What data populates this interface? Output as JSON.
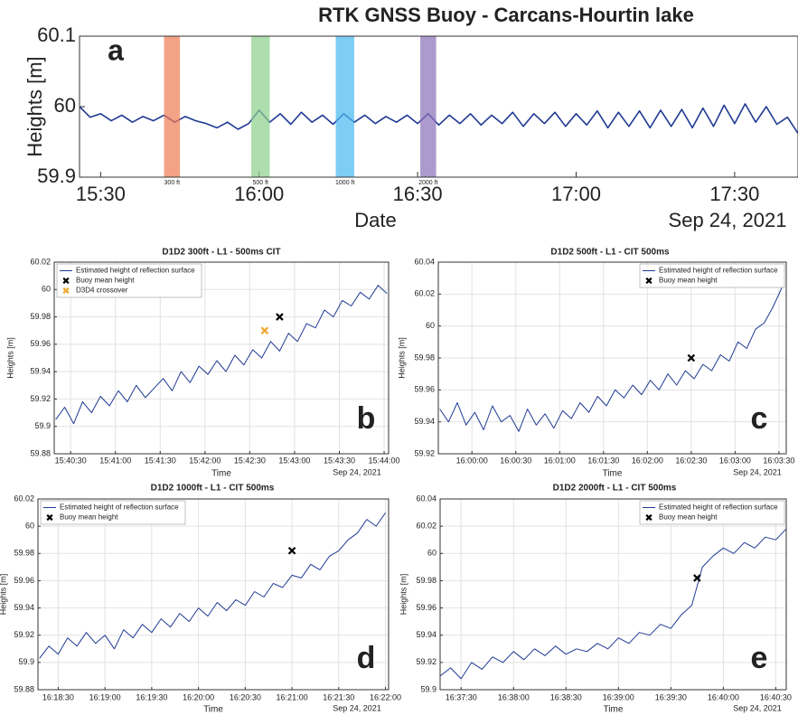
{
  "chart_data": [
    {
      "type": "line",
      "title": "RTK GNSS Buoy - Carcans-Hourtin lake",
      "x_label": "Date",
      "y_label": "Heights [m]",
      "x_date": "Sep 24, 2021",
      "panel_label": "a",
      "grid": false,
      "xlim": [
        "15:26",
        "17:42"
      ],
      "xticks": [
        "15:30",
        "16:00",
        "16:30",
        "17:00",
        "17:30"
      ],
      "ylim": [
        59.9,
        60.1
      ],
      "yticks": [
        59.9,
        60,
        60.1
      ],
      "bands": [
        {
          "label": "300 ft",
          "start": "15:42",
          "end": "15:45",
          "color": "#f07b52"
        },
        {
          "label": "500 ft",
          "start": "15:58.5",
          "end": "16:02",
          "color": "#8ccf8c"
        },
        {
          "label": "1000 ft",
          "start": "16:14.5",
          "end": "16:18",
          "color": "#47b8f0"
        },
        {
          "label": "2000 ft",
          "start": "16:30.5",
          "end": "16:33.5",
          "color": "#8a6fb8"
        }
      ],
      "x": [
        "15:26",
        "15:28",
        "15:30",
        "15:32",
        "15:34",
        "15:36",
        "15:38",
        "15:40",
        "15:42",
        "15:44",
        "15:46",
        "15:48",
        "15:50",
        "15:52",
        "15:54",
        "15:56",
        "15:58",
        "16:00",
        "16:02",
        "16:04",
        "16:06",
        "16:08",
        "16:10",
        "16:12",
        "16:14",
        "16:16",
        "16:18",
        "16:20",
        "16:22",
        "16:24",
        "16:26",
        "16:28",
        "16:30",
        "16:32",
        "16:34",
        "16:36",
        "16:38",
        "16:40",
        "16:42",
        "16:44",
        "16:46",
        "16:48",
        "16:50",
        "16:52",
        "16:54",
        "16:56",
        "16:58",
        "17:00",
        "17:02",
        "17:04",
        "17:06",
        "17:08",
        "17:10",
        "17:12",
        "17:14",
        "17:16",
        "17:18",
        "17:20",
        "17:22",
        "17:24",
        "17:26",
        "17:28",
        "17:30",
        "17:32",
        "17:34",
        "17:36",
        "17:38",
        "17:40",
        "17:42"
      ],
      "series": [
        {
          "name": null,
          "color": "#1f3a93",
          "values": [
            60.0,
            59.985,
            59.99,
            59.98,
            59.988,
            59.978,
            59.986,
            59.98,
            59.988,
            59.978,
            59.986,
            59.98,
            59.976,
            59.97,
            59.978,
            59.968,
            59.976,
            59.995,
            59.978,
            59.99,
            59.975,
            59.992,
            59.978,
            59.988,
            59.975,
            59.99,
            59.978,
            59.988,
            59.976,
            59.986,
            59.978,
            59.988,
            59.976,
            59.99,
            59.974,
            59.988,
            59.976,
            59.99,
            59.974,
            59.988,
            59.976,
            59.992,
            59.972,
            59.99,
            59.976,
            59.992,
            59.972,
            59.99,
            59.974,
            59.994,
            59.97,
            59.992,
            59.972,
            59.994,
            59.97,
            59.995,
            59.972,
            59.996,
            59.97,
            59.998,
            59.972,
            60.002,
            59.976,
            60.004,
            59.978,
            60.0,
            59.975,
            59.985,
            59.962
          ]
        }
      ],
      "points": []
    },
    {
      "type": "line",
      "title": "D1D2 300ft - L1 - 500ms CIT",
      "x_label": "Time",
      "y_label": "Heights [m]",
      "x_date": "Sep 24, 2021",
      "panel_label": "b",
      "grid": true,
      "legend": "upper left",
      "xlim": [
        "15:40:19",
        "15:44:03"
      ],
      "xticks": [
        "15:40:30",
        "15:41:00",
        "15:41:30",
        "15:42:00",
        "15:42:30",
        "15:43:00",
        "15:43:30",
        "15:44:00"
      ],
      "ylim": [
        59.88,
        60.02
      ],
      "yticks": [
        59.88,
        59.9,
        59.92,
        59.94,
        59.96,
        59.98,
        60,
        60.02
      ],
      "x": [
        "15:40:20",
        "15:40:26",
        "15:40:32",
        "15:40:38",
        "15:40:44",
        "15:40:50",
        "15:40:56",
        "15:41:02",
        "15:41:08",
        "15:41:14",
        "15:41:20",
        "15:41:26",
        "15:41:32",
        "15:41:38",
        "15:41:44",
        "15:41:50",
        "15:41:56",
        "15:42:02",
        "15:42:08",
        "15:42:14",
        "15:42:20",
        "15:42:26",
        "15:42:32",
        "15:42:38",
        "15:42:44",
        "15:42:50",
        "15:42:56",
        "15:43:02",
        "15:43:08",
        "15:43:14",
        "15:43:20",
        "15:43:26",
        "15:43:32",
        "15:43:38",
        "15:43:44",
        "15:43:50",
        "15:43:56",
        "15:44:02"
      ],
      "series": [
        {
          "name": "Estimated height of reflection surface",
          "color": "#1f3a93",
          "values": [
            59.905,
            59.914,
            59.902,
            59.918,
            59.91,
            59.922,
            59.915,
            59.926,
            59.918,
            59.93,
            59.921,
            59.928,
            59.935,
            59.926,
            59.94,
            59.932,
            59.944,
            59.938,
            59.948,
            59.94,
            59.952,
            59.945,
            59.956,
            59.95,
            59.962,
            59.955,
            59.968,
            59.962,
            59.975,
            59.972,
            59.985,
            59.98,
            59.992,
            59.988,
            59.998,
            59.993,
            60.003,
            59.997
          ]
        }
      ],
      "points": [
        {
          "name": "Buoy mean height",
          "x": "15:42:50",
          "y": 59.98,
          "color": "#000000"
        },
        {
          "name": "D3D4 crossover",
          "x": "15:42:40",
          "y": 59.97,
          "color": "#f0a830"
        }
      ]
    },
    {
      "type": "line",
      "title": "D1D2 500ft - L1 - CIT 500ms",
      "x_label": "Time",
      "y_label": "Heights [m]",
      "x_date": "Sep 24, 2021",
      "panel_label": "c",
      "grid": true,
      "legend": "upper right",
      "xlim": [
        "15:59:37",
        "16:03:35"
      ],
      "xticks": [
        "16:00:00",
        "16:00:30",
        "16:01:00",
        "16:01:30",
        "16:02:00",
        "16:02:30",
        "16:03:00",
        "16:03:30"
      ],
      "ylim": [
        59.92,
        60.04
      ],
      "yticks": [
        59.92,
        59.94,
        59.96,
        59.98,
        60,
        60.02,
        60.04
      ],
      "x": [
        "15:59:38",
        "15:59:44",
        "15:59:50",
        "15:59:56",
        "16:00:02",
        "16:00:08",
        "16:00:14",
        "16:00:20",
        "16:00:26",
        "16:00:32",
        "16:00:38",
        "16:00:44",
        "16:00:50",
        "16:00:56",
        "16:01:02",
        "16:01:08",
        "16:01:14",
        "16:01:20",
        "16:01:26",
        "16:01:32",
        "16:01:38",
        "16:01:44",
        "16:01:50",
        "16:01:56",
        "16:02:02",
        "16:02:08",
        "16:02:14",
        "16:02:20",
        "16:02:26",
        "16:02:32",
        "16:02:38",
        "16:02:44",
        "16:02:50",
        "16:02:56",
        "16:03:02",
        "16:03:08",
        "16:03:14",
        "16:03:20",
        "16:03:26",
        "16:03:32"
      ],
      "series": [
        {
          "name": "Estimated height of reflection surface",
          "color": "#1f3a93",
          "values": [
            59.948,
            59.94,
            59.952,
            59.938,
            59.946,
            59.935,
            59.95,
            59.94,
            59.944,
            59.934,
            59.948,
            59.938,
            59.945,
            59.936,
            59.947,
            59.942,
            59.952,
            59.946,
            59.956,
            59.95,
            59.96,
            59.955,
            59.963,
            59.957,
            59.966,
            59.96,
            59.97,
            59.963,
            59.972,
            59.967,
            59.976,
            59.972,
            59.982,
            59.978,
            59.99,
            59.986,
            59.998,
            60.002,
            60.012,
            60.024
          ]
        }
      ],
      "points": [
        {
          "name": "Buoy mean height",
          "x": "16:02:30",
          "y": 59.98,
          "color": "#000000"
        }
      ]
    },
    {
      "type": "line",
      "title": "D1D2 1000ft - L1 - CIT 500ms",
      "x_label": "Time",
      "y_label": "Heights [m]",
      "x_date": "Sep 24, 2021",
      "panel_label": "d",
      "grid": true,
      "legend": "upper left",
      "xlim": [
        "16:18:17",
        "16:22:02"
      ],
      "xticks": [
        "16:18:30",
        "16:19:00",
        "16:19:30",
        "16:20:00",
        "16:20:30",
        "16:21:00",
        "16:21:30",
        "16:22:00"
      ],
      "ylim": [
        59.88,
        60.02
      ],
      "yticks": [
        59.88,
        59.9,
        59.92,
        59.94,
        59.96,
        59.98,
        60,
        60.02
      ],
      "x": [
        "16:18:18",
        "16:18:24",
        "16:18:30",
        "16:18:36",
        "16:18:42",
        "16:18:48",
        "16:18:54",
        "16:19:00",
        "16:19:06",
        "16:19:12",
        "16:19:18",
        "16:19:24",
        "16:19:30",
        "16:19:36",
        "16:19:42",
        "16:19:48",
        "16:19:54",
        "16:20:00",
        "16:20:06",
        "16:20:12",
        "16:20:18",
        "16:20:24",
        "16:20:30",
        "16:20:36",
        "16:20:42",
        "16:20:48",
        "16:20:54",
        "16:21:00",
        "16:21:06",
        "16:21:12",
        "16:21:18",
        "16:21:24",
        "16:21:30",
        "16:21:36",
        "16:21:42",
        "16:21:48",
        "16:21:54",
        "16:22:00"
      ],
      "series": [
        {
          "name": "Estimated height of reflection surface",
          "color": "#1f3a93",
          "values": [
            59.903,
            59.912,
            59.906,
            59.918,
            59.912,
            59.922,
            59.914,
            59.92,
            59.91,
            59.924,
            59.918,
            59.928,
            59.922,
            59.932,
            59.926,
            59.936,
            59.93,
            59.94,
            59.934,
            59.944,
            59.938,
            59.946,
            59.942,
            59.952,
            59.948,
            59.958,
            59.955,
            59.964,
            59.962,
            59.972,
            59.968,
            59.978,
            59.982,
            59.99,
            59.995,
            60.005,
            60.0,
            60.01
          ]
        }
      ],
      "points": [
        {
          "name": "Buoy mean height",
          "x": "16:21:00",
          "y": 59.982,
          "color": "#000000"
        }
      ]
    },
    {
      "type": "line",
      "title": "D1D2 2000ft - L1 - CIT 500ms",
      "x_label": "Time",
      "y_label": "Heights [m]",
      "x_date": "Sep 24, 2021",
      "panel_label": "e",
      "grid": true,
      "legend": "upper right",
      "xlim": [
        "16:37:18",
        "16:40:36"
      ],
      "xticks": [
        "16:37:30",
        "16:38:00",
        "16:38:30",
        "16:39:00",
        "16:39:30",
        "16:40:00",
        "16:40:30"
      ],
      "ylim": [
        59.9,
        60.04
      ],
      "yticks": [
        59.9,
        59.92,
        59.94,
        59.96,
        59.98,
        60,
        60.02,
        60.04
      ],
      "x": [
        "16:37:18",
        "16:37:24",
        "16:37:30",
        "16:37:36",
        "16:37:42",
        "16:37:48",
        "16:37:54",
        "16:38:00",
        "16:38:06",
        "16:38:12",
        "16:38:18",
        "16:38:24",
        "16:38:30",
        "16:38:36",
        "16:38:42",
        "16:38:48",
        "16:38:54",
        "16:39:00",
        "16:39:06",
        "16:39:12",
        "16:39:18",
        "16:39:24",
        "16:39:30",
        "16:39:36",
        "16:39:42",
        "16:39:48",
        "16:39:54",
        "16:40:00",
        "16:40:06",
        "16:40:12",
        "16:40:18",
        "16:40:24",
        "16:40:30",
        "16:40:36"
      ],
      "series": [
        {
          "name": "Estimated height of reflection surface",
          "color": "#1f3a93",
          "values": [
            59.91,
            59.916,
            59.908,
            59.92,
            59.915,
            59.924,
            59.92,
            59.928,
            59.922,
            59.93,
            59.925,
            59.932,
            59.926,
            59.93,
            59.928,
            59.934,
            59.93,
            59.938,
            59.934,
            59.942,
            59.94,
            59.948,
            59.945,
            59.955,
            59.962,
            59.99,
            59.998,
            60.004,
            60.0,
            60.008,
            60.004,
            60.012,
            60.01,
            60.018
          ]
        }
      ],
      "points": [
        {
          "name": "Buoy mean height",
          "x": "16:39:45",
          "y": 59.982,
          "color": "#000000"
        }
      ]
    }
  ]
}
